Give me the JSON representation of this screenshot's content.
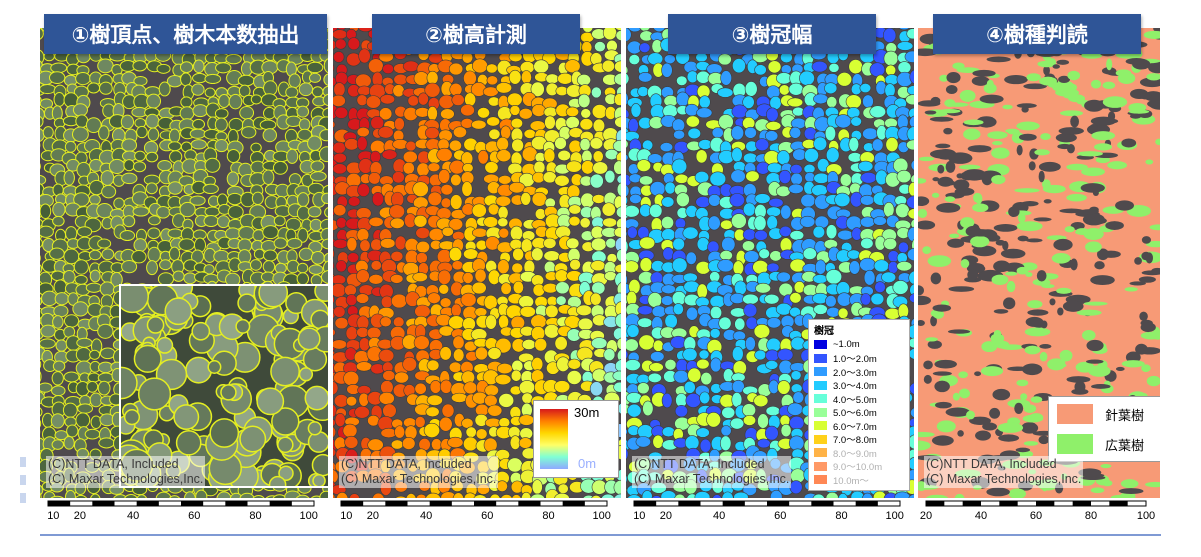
{
  "panels": [
    {
      "title": "①樹頂点、樹木本数抽出",
      "scheme": "aerial"
    },
    {
      "title": "②樹高計測",
      "scheme": "height"
    },
    {
      "title": "③樹冠幅",
      "scheme": "crown"
    },
    {
      "title": "④樹種判読",
      "scheme": "species"
    }
  ],
  "credits": {
    "line1": "(C)NTT DATA, Included",
    "line2": "(C) Maxar Technologies,Inc."
  },
  "scale_ticks_standard": [
    "10",
    "20",
    "40",
    "60",
    "80",
    "100"
  ],
  "scale_ticks_species": [
    "20",
    "40",
    "60",
    "80",
    "100"
  ],
  "height_legend": {
    "max": "30m",
    "min": "0m"
  },
  "crown_legend": {
    "title": "樹冠",
    "items": [
      {
        "label": "~1.0m",
        "color": "#0000e0"
      },
      {
        "label": "1.0～2.0m",
        "color": "#3355ff"
      },
      {
        "label": "2.0～3.0m",
        "color": "#2f9cff"
      },
      {
        "label": "3.0～4.0m",
        "color": "#22ccff"
      },
      {
        "label": "4.0～5.0m",
        "color": "#66ffd9"
      },
      {
        "label": "5.0～6.0m",
        "color": "#99ff99"
      },
      {
        "label": "6.0～7.0m",
        "color": "#d8ff33"
      },
      {
        "label": "7.0～8.0m",
        "color": "#ffd11a"
      },
      {
        "label": "8.0～9.0m",
        "color": "#ffb347"
      },
      {
        "label": "9.0～10.0m",
        "color": "#ff9966"
      },
      {
        "label": "10.0m～",
        "color": "#ff8855"
      }
    ]
  },
  "species_legend": [
    {
      "label": "針葉樹",
      "color": "#f79a76"
    },
    {
      "label": "広葉樹",
      "color": "#8ff06a"
    }
  ],
  "colors": {
    "title_bg": "#2f5597",
    "aerial_bg": "#6f7a52",
    "gap": "#4f4a4d",
    "crown_outline": "#e4ee22",
    "conifer": "#f79a76",
    "broadleaf": "#8ff06a"
  }
}
